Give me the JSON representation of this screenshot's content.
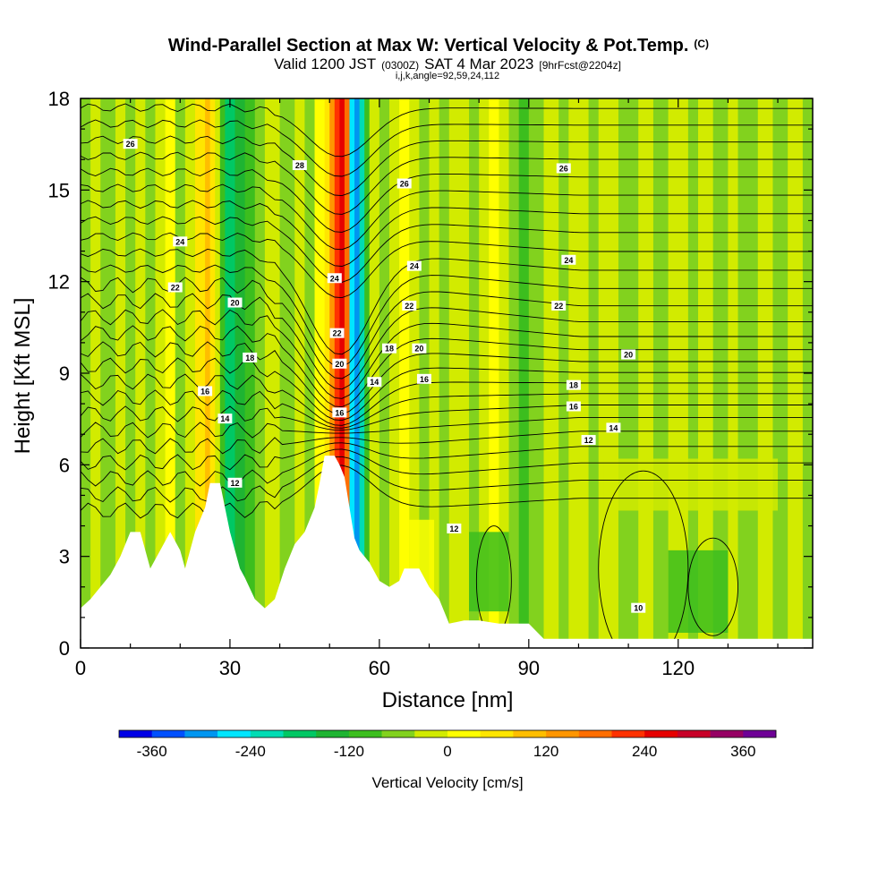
{
  "chart_data": {
    "type": "heatmap",
    "title": "Wind-Parallel Section at Max W: Vertical Velocity & Pot.Temp.",
    "title_mark": "(C)",
    "subtitle_parts": [
      "Valid 1200 JST",
      "(0300Z)",
      "SAT 4 Mar 2023",
      "[9hrFcst@2204z]"
    ],
    "subtitle2": "i,j,k,angle=92,59,24,112",
    "xlabel": "Distance [nm]",
    "ylabel": "Height [Kft MSL]",
    "xlim": [
      0,
      147
    ],
    "ylim": [
      0,
      18
    ],
    "x_ticks": [
      0,
      30,
      60,
      90,
      120
    ],
    "y_ticks": [
      0,
      3,
      6,
      9,
      12,
      15,
      18
    ],
    "colorbar": {
      "label": "Vertical Velocity [cm/s]",
      "min": -400,
      "max": 400,
      "step": 40,
      "ticks": [
        -360,
        -240,
        -120,
        0,
        120,
        240,
        360
      ],
      "colors": [
        "#0000e6",
        "#0050ff",
        "#0096f0",
        "#00e6ff",
        "#00dcb4",
        "#00c864",
        "#1eb432",
        "#3cbe1e",
        "#82d21e",
        "#d2eb00",
        "#ffff00",
        "#ffe600",
        "#ffbe00",
        "#ff9600",
        "#ff6e00",
        "#ff3200",
        "#e60000",
        "#c80028",
        "#960064",
        "#6e0096"
      ]
    },
    "terrain_kft": [
      [
        0,
        1.3
      ],
      [
        2,
        1.6
      ],
      [
        4,
        2.0
      ],
      [
        6,
        2.4
      ],
      [
        8,
        3.0
      ],
      [
        10,
        3.8
      ],
      [
        12,
        3.8
      ],
      [
        13,
        3.2
      ],
      [
        14,
        2.6
      ],
      [
        16,
        3.2
      ],
      [
        18,
        3.8
      ],
      [
        20,
        3.2
      ],
      [
        21,
        2.6
      ],
      [
        23,
        3.8
      ],
      [
        25,
        4.6
      ],
      [
        26,
        5.4
      ],
      [
        28,
        5.4
      ],
      [
        29,
        4.6
      ],
      [
        30,
        3.8
      ],
      [
        31,
        3.2
      ],
      [
        32,
        2.6
      ],
      [
        33,
        2.3
      ],
      [
        35,
        1.6
      ],
      [
        37,
        1.3
      ],
      [
        39,
        1.6
      ],
      [
        41,
        2.6
      ],
      [
        43,
        3.4
      ],
      [
        45,
        3.8
      ],
      [
        47,
        4.6
      ],
      [
        48,
        5.4
      ],
      [
        49,
        6.3
      ],
      [
        51,
        6.3
      ],
      [
        52,
        6.0
      ],
      [
        53,
        5.6
      ],
      [
        54,
        4.6
      ],
      [
        55,
        3.6
      ],
      [
        56,
        3.2
      ],
      [
        58,
        2.8
      ],
      [
        60,
        2.2
      ],
      [
        62,
        2.0
      ],
      [
        64,
        2.2
      ],
      [
        65,
        2.6
      ],
      [
        68,
        2.6
      ],
      [
        70,
        2.0
      ],
      [
        72,
        1.6
      ],
      [
        74,
        0.8
      ],
      [
        77,
        0.9
      ],
      [
        80,
        0.9
      ],
      [
        84,
        0.8
      ],
      [
        86,
        0.8
      ],
      [
        90,
        0.8
      ],
      [
        93,
        0.3
      ],
      [
        147,
        0.3
      ]
    ],
    "theta_levels": [
      10,
      12,
      14,
      16,
      18,
      20,
      22,
      24,
      26,
      28
    ],
    "contour_labels": [
      {
        "text": "26",
        "x": 10,
        "y": 16.5
      },
      {
        "text": "28",
        "x": 44,
        "y": 15.8
      },
      {
        "text": "26",
        "x": 65,
        "y": 15.2
      },
      {
        "text": "26",
        "x": 97,
        "y": 15.7
      },
      {
        "text": "24",
        "x": 20,
        "y": 13.3
      },
      {
        "text": "24",
        "x": 51,
        "y": 12.1
      },
      {
        "text": "24",
        "x": 67,
        "y": 12.5
      },
      {
        "text": "24",
        "x": 98,
        "y": 12.7
      },
      {
        "text": "22",
        "x": 19,
        "y": 11.8
      },
      {
        "text": "20",
        "x": 31,
        "y": 11.3
      },
      {
        "text": "22",
        "x": 51.5,
        "y": 10.3
      },
      {
        "text": "22",
        "x": 66,
        "y": 11.2
      },
      {
        "text": "22",
        "x": 96,
        "y": 11.2
      },
      {
        "text": "18",
        "x": 34,
        "y": 9.5
      },
      {
        "text": "20",
        "x": 52,
        "y": 9.3
      },
      {
        "text": "18",
        "x": 62,
        "y": 9.8
      },
      {
        "text": "20",
        "x": 68,
        "y": 9.8
      },
      {
        "text": "20",
        "x": 110,
        "y": 9.6
      },
      {
        "text": "16",
        "x": 25,
        "y": 8.4
      },
      {
        "text": "14",
        "x": 59,
        "y": 8.7
      },
      {
        "text": "16",
        "x": 69,
        "y": 8.8
      },
      {
        "text": "18",
        "x": 99,
        "y": 8.6
      },
      {
        "text": "14",
        "x": 29,
        "y": 7.5
      },
      {
        "text": "16",
        "x": 52,
        "y": 7.7
      },
      {
        "text": "16",
        "x": 99,
        "y": 7.9
      },
      {
        "text": "14",
        "x": 107,
        "y": 7.2
      },
      {
        "text": "12",
        "x": 102,
        "y": 6.8
      },
      {
        "text": "12",
        "x": 31,
        "y": 5.4
      },
      {
        "text": "12",
        "x": 75,
        "y": 3.9
      },
      {
        "text": "10",
        "x": 112,
        "y": 1.3
      }
    ]
  }
}
